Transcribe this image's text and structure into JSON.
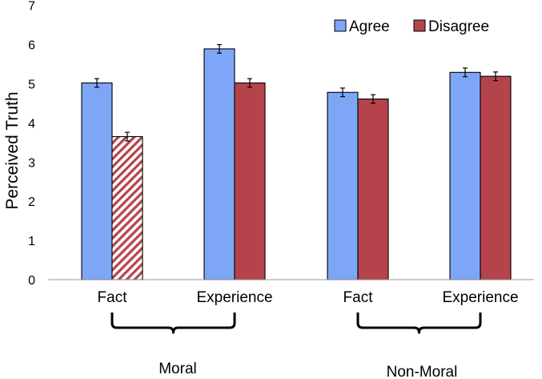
{
  "chart_data": {
    "type": "bar",
    "title": "",
    "xlabel": "",
    "ylabel": "Perceived Truth",
    "ylim": [
      0,
      7
    ],
    "yticks": [
      0,
      1,
      2,
      3,
      4,
      5,
      6,
      7
    ],
    "categories": [
      "Fact",
      "Experience",
      "Fact",
      "Experience"
    ],
    "groups": [
      {
        "label": "Moral",
        "categories": [
          0,
          1
        ]
      },
      {
        "label": "Non-Moral",
        "categories": [
          2,
          3
        ]
      }
    ],
    "series": [
      {
        "name": "Agree",
        "color": "#7ea6f6",
        "values": [
          5.02,
          5.89,
          4.78,
          5.29
        ],
        "errors": [
          0.11,
          0.11,
          0.11,
          0.11
        ]
      },
      {
        "name": "Disagree",
        "color": "#b5434b",
        "values": [
          3.65,
          5.02,
          4.61,
          5.19
        ],
        "errors": [
          0.11,
          0.11,
          0.11,
          0.11
        ]
      }
    ],
    "hatched": [
      {
        "series": 1,
        "category": 0
      }
    ],
    "legend_position": "top-right",
    "grid": false
  }
}
